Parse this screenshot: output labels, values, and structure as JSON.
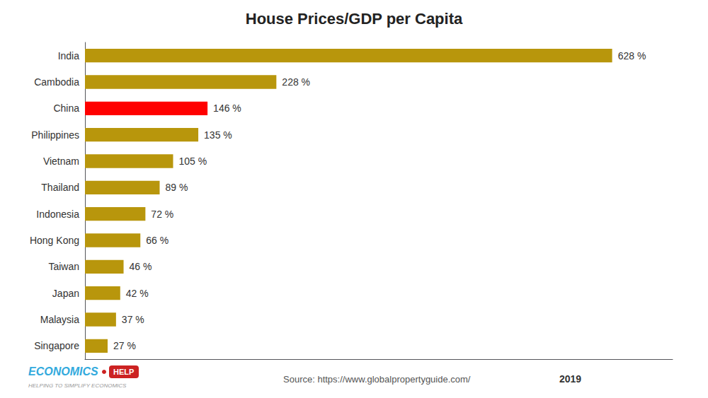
{
  "chart_data": {
    "type": "bar",
    "orientation": "horizontal",
    "title": "House Prices/GDP per Capita",
    "categories": [
      "India",
      "Cambodia",
      "China",
      "Philippines",
      "Vietnam",
      "Thailand",
      "Indonesia",
      "Hong Kong",
      "Taiwan",
      "Japan",
      "Malaysia",
      "Singapore"
    ],
    "values": [
      628,
      228,
      146,
      135,
      105,
      89,
      72,
      66,
      46,
      42,
      37,
      27
    ],
    "value_labels": [
      "628 %",
      "228 %",
      "146 %",
      "135 %",
      "105 %",
      "89 %",
      "72 %",
      "66 %",
      "46 %",
      "42 %",
      "37 %",
      "27 %"
    ],
    "data_labels": true,
    "colors": [
      "#B8960C",
      "#B8960C",
      "#FF0000",
      "#B8960C",
      "#B8960C",
      "#B8960C",
      "#B8960C",
      "#B8960C",
      "#B8960C",
      "#B8960C",
      "#B8960C",
      "#B8960C"
    ],
    "xlim": [
      0,
      700
    ],
    "grid": false,
    "tick_labels": "y",
    "annotations": [
      "Source: https://www.globalpropertyguide.com/",
      "2019",
      "ECONOMICS",
      "HELP",
      "HELPING TO SIMPLIFY ECONOMICS"
    ]
  }
}
